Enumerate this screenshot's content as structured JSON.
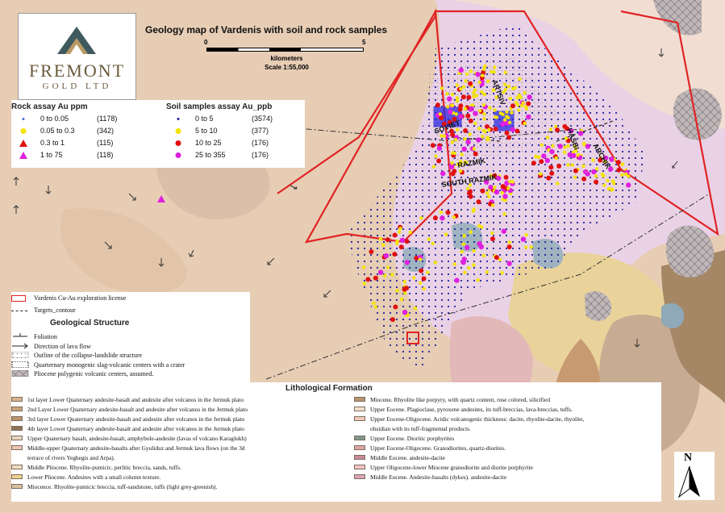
{
  "map": {
    "title": "Geology map of Vardenis with soil and rock samples",
    "scale": {
      "start": "0",
      "end": "5",
      "unit": "kilometers",
      "ratio": "Scale 1:55,000"
    },
    "north_label": "N",
    "targets": [
      "ARTSIV",
      "SOVIET",
      "HASBI",
      "ARCHIK",
      "RAZMIK",
      "SOUTH RAZMIK"
    ]
  },
  "logo": {
    "name": "FREMONT",
    "sub": "GOLD LTD"
  },
  "rock_assay": {
    "title": "Rock assay Au ppm",
    "items": [
      {
        "range": "0 to 0.05",
        "count": "(1178)",
        "color": "#3b6fd6",
        "symbol": "dot-small"
      },
      {
        "range": "0.05 to 0.3",
        "count": "(342)",
        "color": "#f4e400",
        "symbol": "dot"
      },
      {
        "range": "0.3 to 1",
        "count": "(115)",
        "color": "#e01010",
        "symbol": "triangle"
      },
      {
        "range": "1 to 75",
        "count": "(118)",
        "color": "#e020e0",
        "symbol": "triangle"
      }
    ]
  },
  "soil_assay": {
    "title": "Soil samples assay Au_ppb",
    "items": [
      {
        "range": "0 to 5",
        "count": "(3574)",
        "color": "#1a1a9a",
        "symbol": "dot-small"
      },
      {
        "range": "5 to 10",
        "count": "(377)",
        "color": "#f4e400",
        "symbol": "dot"
      },
      {
        "range": "10 to 25",
        "count": "(176)",
        "color": "#e01010",
        "symbol": "dot"
      },
      {
        "range": "25 to 355",
        "count": "(176)",
        "color": "#e020e0",
        "symbol": "dot"
      }
    ]
  },
  "structure": {
    "license": "Vardenis Cu-Au exploration license",
    "targets_contour": "Targets_contour",
    "title": "Geological Structure",
    "items": [
      "Foliation",
      "Direction of lava flow",
      "Outline of the collapse-landslide structure",
      "Quarternary monogenic slag-volcanic centers with a crater",
      "Pliocene polygenic volcanic centers, assumed."
    ]
  },
  "lithology": {
    "title": "Lithological Formation",
    "left": [
      {
        "text": "1st layer Lower Quaternary andesite-basalt and andesite after volcanos in the Jermuk plato",
        "color": "#d9b48f"
      },
      {
        "text": "2nd Layer Lower Quaternary andesite-basalt and andesite after volcanos in the Jermuk plato",
        "color": "#c9a47e"
      },
      {
        "text": "3rd layer Lower Quaternary andesite-basalt and andesite after volcanos in the Jermuk plato",
        "color": "#b9946e"
      },
      {
        "text": "4th layer Lower Quaternary andesite-basalt and andesite after volcanos in the Jermuk plato",
        "color": "#8f7257"
      },
      {
        "text": "Upper Quaternary basalt, andesite-basalt, amphybole-andesite (lavas of volcano Karaglukh)",
        "color": "#e8d6c0"
      },
      {
        "text": "Middle-upper Quaternary andesite-basalts after Gyuliduz and Jermuk lava flows (on the 3d",
        "color": "#ecc4b4"
      },
      {
        "text": "terrace of rivers Yeghegis and Arpa).",
        "color": ""
      },
      {
        "text": "Middle Pliocene. Rhyolite-pumicic, perlitic breccia, sands, tuffs.",
        "color": "#f2dcc0"
      },
      {
        "text": "Lower Pliocene. Andesites with a small column texture.",
        "color": "#eed08e"
      },
      {
        "text": "Miocence. Rhyolite-pumicic breccia, tuff-sandstone, tuffs (light grey-greenish).",
        "color": "#d8c29c"
      }
    ],
    "right": [
      {
        "text": "Miocene. Rhyolite like porpyry, with quartz content, rose colored, silicified",
        "color": "#b89470"
      },
      {
        "text": "Upper Eocene. Plagioclase, pyroxene andesites, its tuff-breccias, lava-breccias, tuffs.",
        "color": "#f2e2cc"
      },
      {
        "text": "Upper Eocene-Oligocene. Acidic volcanogenic thickness: dacite, rhyolite-dacite, rhyolite,",
        "color": "#f0c8b8"
      },
      {
        "text": "obsidian with its tuff-fragmental products.",
        "color": ""
      },
      {
        "text": "Upper Eocene. Dioritic porphyrites",
        "color": "#7f9a8c"
      },
      {
        "text": "Upper Eocene-Oligocene. Granodiorites, quartz-diorites.",
        "color": "#e0a6a6"
      },
      {
        "text": "Middle Eocene. andesite-dacite",
        "color": "#c98a9a"
      },
      {
        "text": "Upper Oligocene-lower Miocene granodiorite and diorite porphyrite",
        "color": "#f4c4c4"
      },
      {
        "text": "Middle Eocene. Andesite-basalts (dykes). andesite-dacite",
        "color": "#dca4b4"
      }
    ]
  },
  "colors": {
    "license_outline": "#e02424",
    "base_geology": "#e6cdb3",
    "accent": "#e01010"
  }
}
